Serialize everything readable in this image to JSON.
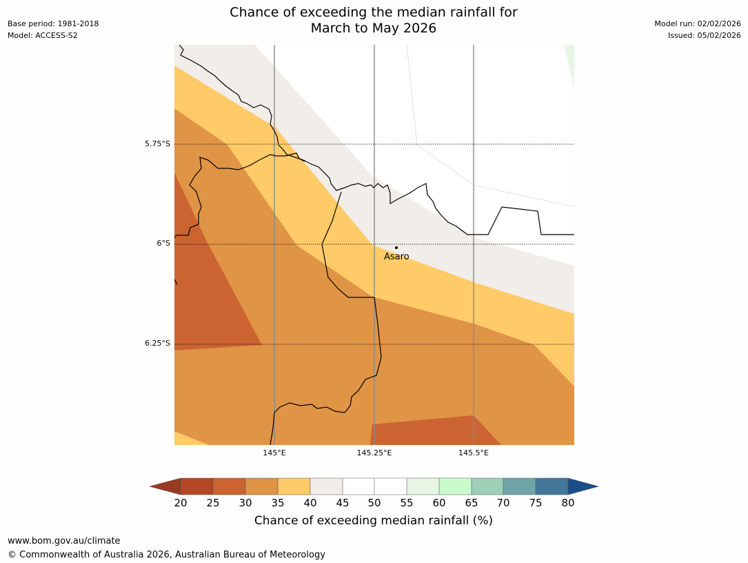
{
  "title": {
    "line1": "Chance of exceeding the median rainfall for",
    "line2": "March to May 2026"
  },
  "meta": {
    "base_period": "Base period: 1981-2018",
    "model": "Model: ACCESS-S2",
    "model_run": "Model run: 02/02/2026",
    "issued": "Issued: 05/02/2026"
  },
  "map": {
    "latitude_labels": [
      "5.75°S",
      "6°S",
      "6.25°S"
    ],
    "longitude_labels": [
      "145°E",
      "145.25°E",
      "145.5°E"
    ],
    "place": {
      "name": "Asaro",
      "marker": "town-dot-icon"
    }
  },
  "legend": {
    "title": "Chance of exceeding median rainfall (%)",
    "ticks": [
      "20",
      "25",
      "30",
      "35",
      "40",
      "45",
      "50",
      "55",
      "60",
      "65",
      "70",
      "75",
      "80"
    ],
    "colors": {
      "below_20": "#9b3a22",
      "20_25": "#b24826",
      "25_30": "#cc6432",
      "30_35": "#e09446",
      "35_40": "#fecb68",
      "40_45": "#f1ede8",
      "45_50": "#ffffff",
      "50_55": "#ffffff",
      "55_60": "#e9f6e6",
      "60_65": "#c9fbcc",
      "65_70": "#9ed0b8",
      "70_75": "#6fa5a8",
      "75_80": "#427799",
      "above_80": "#1a4e8a"
    }
  },
  "footer": {
    "url": "www.bom.gov.au/climate",
    "copyright": "© Commonwealth of Australia 2026, Australian Bureau of Meteorology"
  }
}
